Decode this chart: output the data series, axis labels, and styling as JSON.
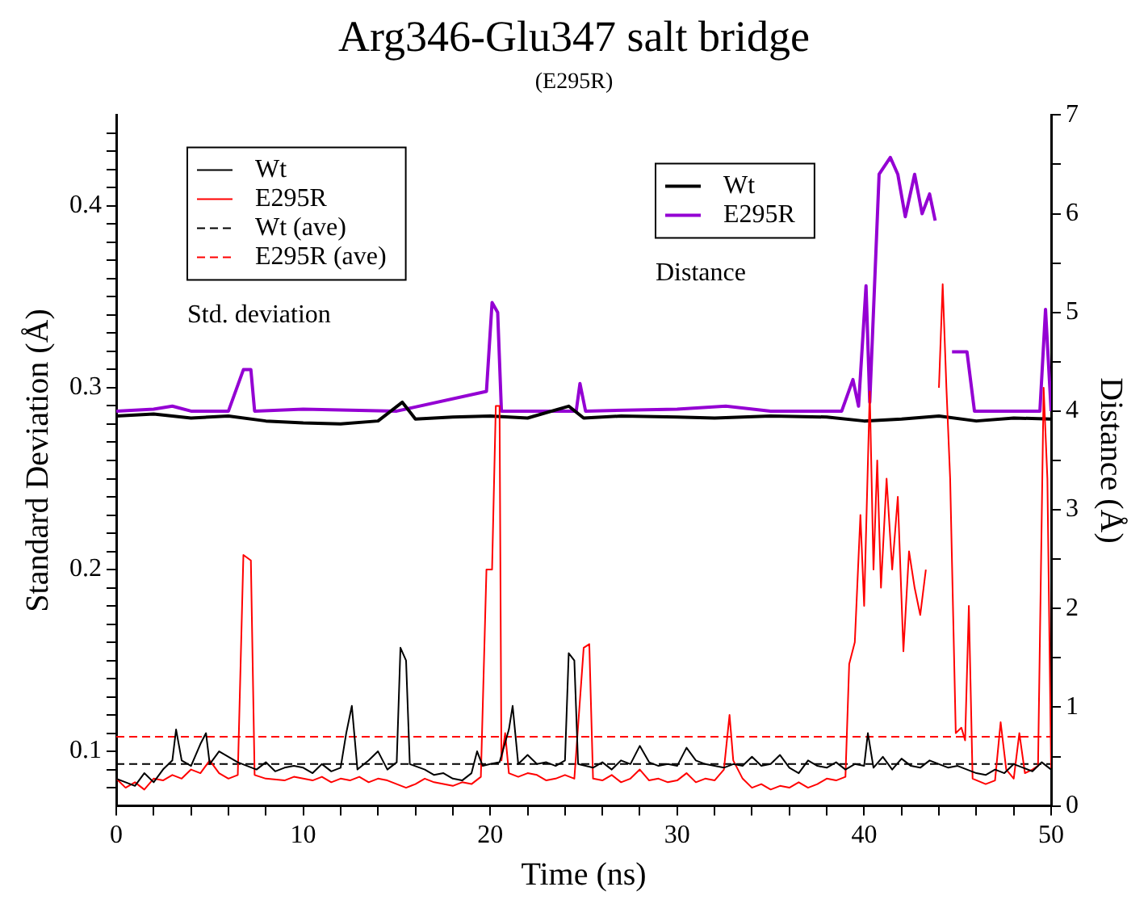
{
  "chart_data": {
    "type": "line",
    "title": "Arg346-Glu347 salt bridge",
    "subtitle": "(E295R)",
    "xlabel": "Time (ns)",
    "ylabel": "Standard Deviation (Å)",
    "y2label": "Distance (Å)",
    "annotations": [
      "Std. deviation",
      "Distance"
    ],
    "legend": "top left",
    "grid": false,
    "marker": "none",
    "xlim": [
      0,
      50
    ],
    "xticks": [
      0,
      {
        "value": 2,
        "label": null
      },
      {
        "value": 4,
        "label": null
      },
      {
        "value": 6,
        "label": null
      },
      {
        "value": 8,
        "label": null
      },
      10,
      {
        "value": 12,
        "label": null
      },
      {
        "value": 14,
        "label": null
      },
      {
        "value": 16,
        "label": null
      },
      {
        "value": 18,
        "label": null
      },
      20,
      {
        "value": 22,
        "label": null
      },
      {
        "value": 24,
        "label": null
      },
      {
        "value": 26,
        "label": null
      },
      {
        "value": 28,
        "label": null
      },
      30,
      {
        "value": 32,
        "label": null
      },
      {
        "value": 34,
        "label": null
      },
      {
        "value": 36,
        "label": null
      },
      {
        "value": 38,
        "label": null
      },
      40,
      {
        "value": 42,
        "label": null
      },
      {
        "value": 44,
        "label": null
      },
      {
        "value": 46,
        "label": null
      },
      {
        "value": 48,
        "label": null
      },
      50
    ],
    "ylim": [
      0.07,
      0.45
    ],
    "yticks": [
      {
        "value": 0.08,
        "label": null
      },
      {
        "value": 0.09,
        "label": null
      },
      0.1,
      {
        "value": 0.11,
        "label": null
      },
      {
        "value": 0.12,
        "label": null
      },
      {
        "value": 0.13,
        "label": null
      },
      {
        "value": 0.14,
        "label": null
      },
      {
        "value": 0.15,
        "label": null
      },
      {
        "value": 0.16,
        "label": null
      },
      {
        "value": 0.17,
        "label": null
      },
      {
        "value": 0.18,
        "label": null
      },
      {
        "value": 0.19,
        "label": null
      },
      0.2,
      {
        "value": 0.21,
        "label": null
      },
      {
        "value": 0.22,
        "label": null
      },
      {
        "value": 0.23,
        "label": null
      },
      {
        "value": 0.24,
        "label": null
      },
      {
        "value": 0.25,
        "label": null
      },
      {
        "value": 0.26,
        "label": null
      },
      {
        "value": 0.27,
        "label": null
      },
      {
        "value": 0.28,
        "label": null
      },
      {
        "value": 0.29,
        "label": null
      },
      0.3,
      {
        "value": 0.31,
        "label": null
      },
      {
        "value": 0.32,
        "label": null
      },
      {
        "value": 0.33,
        "label": null
      },
      {
        "value": 0.34,
        "label": null
      },
      {
        "value": 0.35,
        "label": null
      },
      {
        "value": 0.36,
        "label": null
      },
      {
        "value": 0.37,
        "label": null
      },
      {
        "value": 0.38,
        "label": null
      },
      {
        "value": 0.39,
        "label": null
      },
      0.4,
      {
        "value": 0.41,
        "label": null
      },
      {
        "value": 0.42,
        "label": null
      },
      {
        "value": 0.43,
        "label": null
      },
      {
        "value": 0.44,
        "label": null
      }
    ],
    "y2lim": [
      0,
      7
    ],
    "y2ticks": [
      0,
      {
        "value": 0.5,
        "label": null
      },
      1,
      {
        "value": 1.5,
        "label": null
      },
      2,
      {
        "value": 2.5,
        "label": null
      },
      3,
      {
        "value": 3.5,
        "label": null
      },
      4,
      {
        "value": 4.5,
        "label": null
      },
      5,
      {
        "value": 5.5,
        "label": null
      },
      6,
      {
        "value": 6.5,
        "label": null
      },
      7
    ],
    "series": [
      {
        "name": "Wt",
        "color": "#000000",
        "x": [
          0,
          0.5,
          1,
          1.5,
          2,
          2.5,
          3,
          3.2,
          3.5,
          4,
          4.5,
          4.8,
          5,
          5.5,
          6,
          6.5,
          7,
          7.5,
          8,
          8.5,
          9,
          9.5,
          10,
          10.5,
          11,
          11.5,
          12,
          12.3,
          12.6,
          12.9,
          13.5,
          14,
          14.5,
          15,
          15.2,
          15.5,
          15.7,
          16.5,
          17,
          17.5,
          18,
          18.5,
          19,
          19.3,
          19.6,
          20,
          20.5,
          21,
          21.2,
          21.5,
          22,
          22.5,
          23,
          23.5,
          24,
          24.2,
          24.5,
          24.7,
          25.5,
          26,
          26.5,
          27,
          27.5,
          28,
          28.5,
          29,
          29.5,
          30,
          30.5,
          31,
          31.5,
          32,
          32.5,
          33,
          33.5,
          34,
          34.5,
          35,
          35.5,
          36,
          36.5,
          37,
          37.5,
          38,
          38.5,
          39,
          39.5,
          40,
          40.2,
          40.5,
          41,
          41.5,
          42,
          42.5,
          43,
          43.5,
          44,
          44.5,
          45,
          45.5,
          46,
          46.5,
          47,
          47.5,
          48,
          48.5,
          49,
          49.5,
          50
        ],
        "values": [
          0.085,
          0.083,
          0.081,
          0.088,
          0.083,
          0.09,
          0.095,
          0.112,
          0.095,
          0.092,
          0.104,
          0.11,
          0.093,
          0.1,
          0.097,
          0.094,
          0.092,
          0.09,
          0.094,
          0.089,
          0.091,
          0.092,
          0.091,
          0.088,
          0.093,
          0.089,
          0.091,
          0.11,
          0.125,
          0.09,
          0.095,
          0.1,
          0.09,
          0.094,
          0.157,
          0.15,
          0.093,
          0.09,
          0.087,
          0.088,
          0.085,
          0.084,
          0.088,
          0.1,
          0.092,
          0.093,
          0.094,
          0.112,
          0.125,
          0.093,
          0.098,
          0.093,
          0.094,
          0.092,
          0.095,
          0.154,
          0.15,
          0.093,
          0.091,
          0.094,
          0.09,
          0.095,
          0.093,
          0.103,
          0.094,
          0.092,
          0.093,
          0.092,
          0.102,
          0.095,
          0.093,
          0.092,
          0.091,
          0.093,
          0.092,
          0.097,
          0.092,
          0.093,
          0.098,
          0.091,
          0.088,
          0.095,
          0.092,
          0.091,
          0.094,
          0.09,
          0.093,
          0.092,
          0.11,
          0.091,
          0.097,
          0.09,
          0.096,
          0.092,
          0.091,
          0.095,
          0.093,
          0.091,
          0.092,
          0.09,
          0.088,
          0.087,
          0.09,
          0.088,
          0.093,
          0.091,
          0.089,
          0.094,
          0.09
        ]
      },
      {
        "name": "E295R",
        "color": "#ff0000",
        "x": [
          0,
          0.5,
          1,
          1.5,
          2,
          2.5,
          3,
          3.5,
          4,
          4.5,
          5,
          5.5,
          6,
          6.5,
          6.8,
          7.2,
          7.4,
          8,
          9,
          9.5,
          10,
          10.5,
          11,
          11.5,
          12,
          12.5,
          13,
          13.5,
          14,
          14.5,
          15,
          15.5,
          16,
          16.5,
          17,
          17.5,
          18,
          18.5,
          19,
          19.5,
          19.8,
          20.1,
          20.3,
          20.5,
          20.6,
          20.8,
          21,
          21.5,
          22,
          22.5,
          23,
          23.5,
          24,
          24.5,
          25,
          25.3,
          25.5,
          26,
          26.5,
          27,
          27.5,
          28,
          28.5,
          29,
          29.5,
          30,
          30.5,
          31,
          31.5,
          32,
          32.5,
          32.8,
          33,
          33.5,
          34,
          34.5,
          35,
          35.5,
          36,
          36.5,
          37,
          37.5,
          38,
          38.5,
          39,
          39.2,
          39.5,
          39.8,
          40,
          40.3,
          40.5,
          40.7,
          40.9,
          41.2,
          41.5,
          41.8,
          42.1,
          42.4,
          42.7,
          43,
          43.3,
          43.6,
          43.8,
          44,
          44.2,
          44.4,
          44.6,
          44.9,
          45.2,
          45.4,
          45.6,
          45.8,
          46.5,
          47,
          47.3,
          47.6,
          48,
          48.3,
          48.6,
          49,
          49.3,
          49.6,
          49.8,
          50
        ],
        "values": [
          0.085,
          0.08,
          0.083,
          0.079,
          0.085,
          0.084,
          0.087,
          0.085,
          0.09,
          0.088,
          0.095,
          0.088,
          0.085,
          0.087,
          0.208,
          0.205,
          0.087,
          0.085,
          0.084,
          0.086,
          0.085,
          0.084,
          0.086,
          0.083,
          0.085,
          0.084,
          0.086,
          0.083,
          0.085,
          0.084,
          0.082,
          0.08,
          0.082,
          0.085,
          0.083,
          0.082,
          0.081,
          0.083,
          0.082,
          0.086,
          0.2,
          0.2,
          0.29,
          0.29,
          0.095,
          0.11,
          0.088,
          0.086,
          0.088,
          0.087,
          0.084,
          0.085,
          0.087,
          0.085,
          0.157,
          0.159,
          0.085,
          0.084,
          0.087,
          0.083,
          0.085,
          0.09,
          0.084,
          0.085,
          0.083,
          0.084,
          0.088,
          0.083,
          0.085,
          0.084,
          0.09,
          0.12,
          0.095,
          0.085,
          0.08,
          0.082,
          0.079,
          0.081,
          0.08,
          0.083,
          0.08,
          0.082,
          0.085,
          0.084,
          0.086,
          0.148,
          0.16,
          0.23,
          0.18,
          0.298,
          0.2,
          0.26,
          0.19,
          0.25,
          0.2,
          0.24,
          0.155,
          0.21,
          0.19,
          0.175,
          0.2,
          null,
          null,
          0.3,
          0.357,
          0.3,
          0.25,
          0.11,
          0.113,
          0.106,
          0.18,
          0.085,
          0.082,
          0.084,
          0.116,
          0.09,
          0.085,
          0.11,
          0.088,
          0.09,
          0.092,
          0.3,
          0.25,
          0.09
        ]
      },
      {
        "name": "Wt (ave)",
        "color": "#000000",
        "line_style": "dashed",
        "x": [
          0,
          50
        ],
        "values": [
          0.093,
          0.093
        ]
      },
      {
        "name": "E295R (ave)",
        "color": "#ff0000",
        "line_style": "dashed",
        "x": [
          0,
          50
        ],
        "values": [
          0.108,
          0.108
        ]
      },
      {
        "name": "Wt",
        "color": "#000000",
        "axis": "y2",
        "x": [
          0,
          2,
          4,
          6,
          8,
          10,
          12,
          14,
          15.3,
          16,
          18,
          20,
          22,
          24.2,
          25,
          27,
          30,
          32,
          35,
          38,
          40,
          42,
          44,
          46,
          48,
          50
        ],
        "values": [
          3.95,
          3.97,
          3.93,
          3.95,
          3.9,
          3.88,
          3.87,
          3.9,
          4.09,
          3.92,
          3.94,
          3.95,
          3.93,
          4.05,
          3.93,
          3.95,
          3.94,
          3.93,
          3.95,
          3.94,
          3.9,
          3.92,
          3.95,
          3.9,
          3.93,
          3.92
        ]
      },
      {
        "name": "E295R",
        "color": "#9400d3",
        "axis": "y2",
        "x": [
          0,
          2,
          3,
          4,
          6,
          6.8,
          7.2,
          7.4,
          10,
          15,
          19.8,
          20.1,
          20.4,
          20.6,
          24.6,
          24.8,
          25.1,
          30,
          32.6,
          35,
          38.8,
          39.4,
          39.7,
          40.1,
          40.3,
          40.8,
          41.4,
          41.8,
          42.2,
          42.7,
          43.1,
          43.5,
          43.8,
          43.9,
          44.4,
          44.7,
          45.5,
          45.9,
          48,
          49.4,
          49.7,
          50
        ],
        "values": [
          4,
          4.02,
          4.05,
          4,
          4,
          4.42,
          4.42,
          4,
          4.02,
          4,
          4.2,
          5.1,
          5,
          4,
          4,
          4.28,
          4,
          4.02,
          4.05,
          4,
          4,
          4.32,
          4.05,
          5.27,
          4.09,
          6.4,
          6.57,
          6.4,
          5.97,
          6.4,
          6,
          6.2,
          5.93,
          null,
          null,
          4.6,
          4.6,
          4,
          4,
          4,
          5.03,
          4
        ]
      }
    ]
  }
}
